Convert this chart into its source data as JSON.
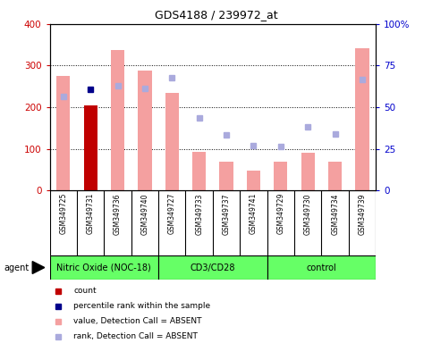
{
  "title": "GDS4188 / 239972_at",
  "samples": [
    "GSM349725",
    "GSM349731",
    "GSM349736",
    "GSM349740",
    "GSM349727",
    "GSM349733",
    "GSM349737",
    "GSM349741",
    "GSM349729",
    "GSM349730",
    "GSM349734",
    "GSM349739"
  ],
  "bar_values": [
    275,
    205,
    338,
    287,
    234,
    93,
    68,
    48,
    68,
    90,
    70,
    342
  ],
  "bar_colors": [
    "#f4a0a0",
    "#c00000",
    "#f4a0a0",
    "#f4a0a0",
    "#f4a0a0",
    "#f4a0a0",
    "#f4a0a0",
    "#f4a0a0",
    "#f4a0a0",
    "#f4a0a0",
    "#f4a0a0",
    "#f4a0a0"
  ],
  "rank_squares": [
    225,
    244,
    252,
    245,
    270,
    175,
    133,
    107,
    105,
    153,
    136,
    267
  ],
  "rank_dark": [
    false,
    true,
    false,
    false,
    false,
    false,
    false,
    false,
    false,
    false,
    false,
    false
  ],
  "ylim_left": [
    0,
    400
  ],
  "ylim_right": [
    0,
    100
  ],
  "yticks_left": [
    0,
    100,
    200,
    300,
    400
  ],
  "yticks_right": [
    0,
    25,
    50,
    75,
    100
  ],
  "ytick_labels_right": [
    "0",
    "25",
    "50",
    "75",
    "100%"
  ],
  "group_defs": [
    {
      "label": "Nitric Oxide (NOC-18)",
      "start": 0,
      "end": 4
    },
    {
      "label": "CD3/CD28",
      "start": 4,
      "end": 8
    },
    {
      "label": "control",
      "start": 8,
      "end": 12
    }
  ],
  "group_color": "#66ff66",
  "legend_items": [
    {
      "color": "#c00000",
      "label": "count"
    },
    {
      "color": "#00008b",
      "label": "percentile rank within the sample"
    },
    {
      "color": "#f4a0a0",
      "label": "value, Detection Call = ABSENT"
    },
    {
      "color": "#aaaadd",
      "label": "rank, Detection Call = ABSENT"
    }
  ],
  "ylabel_left_color": "#cc0000",
  "ylabel_right_color": "#0000cc",
  "background_color": "#ffffff",
  "plot_bg": "#ffffff",
  "xticklabel_area_color": "#cccccc",
  "bar_width": 0.5
}
